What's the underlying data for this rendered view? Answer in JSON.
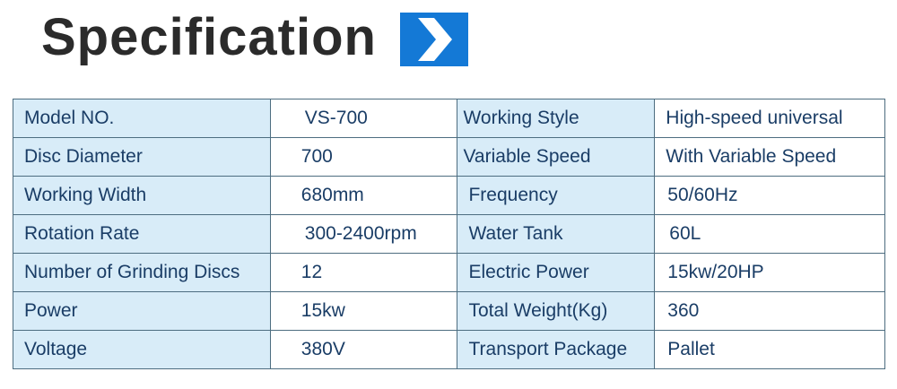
{
  "title": "Specification",
  "icon": "chevron-right-icon",
  "colors": {
    "accent": "#1479d6",
    "label_bg": "#d8ecf8",
    "text": "#1a3d66"
  },
  "rows": [
    {
      "label1": "Model NO.",
      "value1": "VS-700",
      "label2": "Working Style",
      "value2": "High-speed universal"
    },
    {
      "label1": "Disc Diameter",
      "value1": "700",
      "label2": "Variable Speed",
      "value2": "With Variable Speed"
    },
    {
      "label1": "Working Width",
      "value1": "680mm",
      "label2": "Frequency",
      "value2": "50/60Hz"
    },
    {
      "label1": "Rotation Rate",
      "value1": "300-2400rpm",
      "label2": "Water Tank",
      "value2": "60L"
    },
    {
      "label1": "Number of Grinding Discs",
      "value1": "12",
      "label2": "Electric Power",
      "value2": "15kw/20HP"
    },
    {
      "label1": "Power",
      "value1": "15kw",
      "label2": "Total Weight(Kg)",
      "value2": "360"
    },
    {
      "label1": "Voltage",
      "value1": "380V",
      "label2": "Transport Package",
      "value2": "Pallet"
    }
  ]
}
